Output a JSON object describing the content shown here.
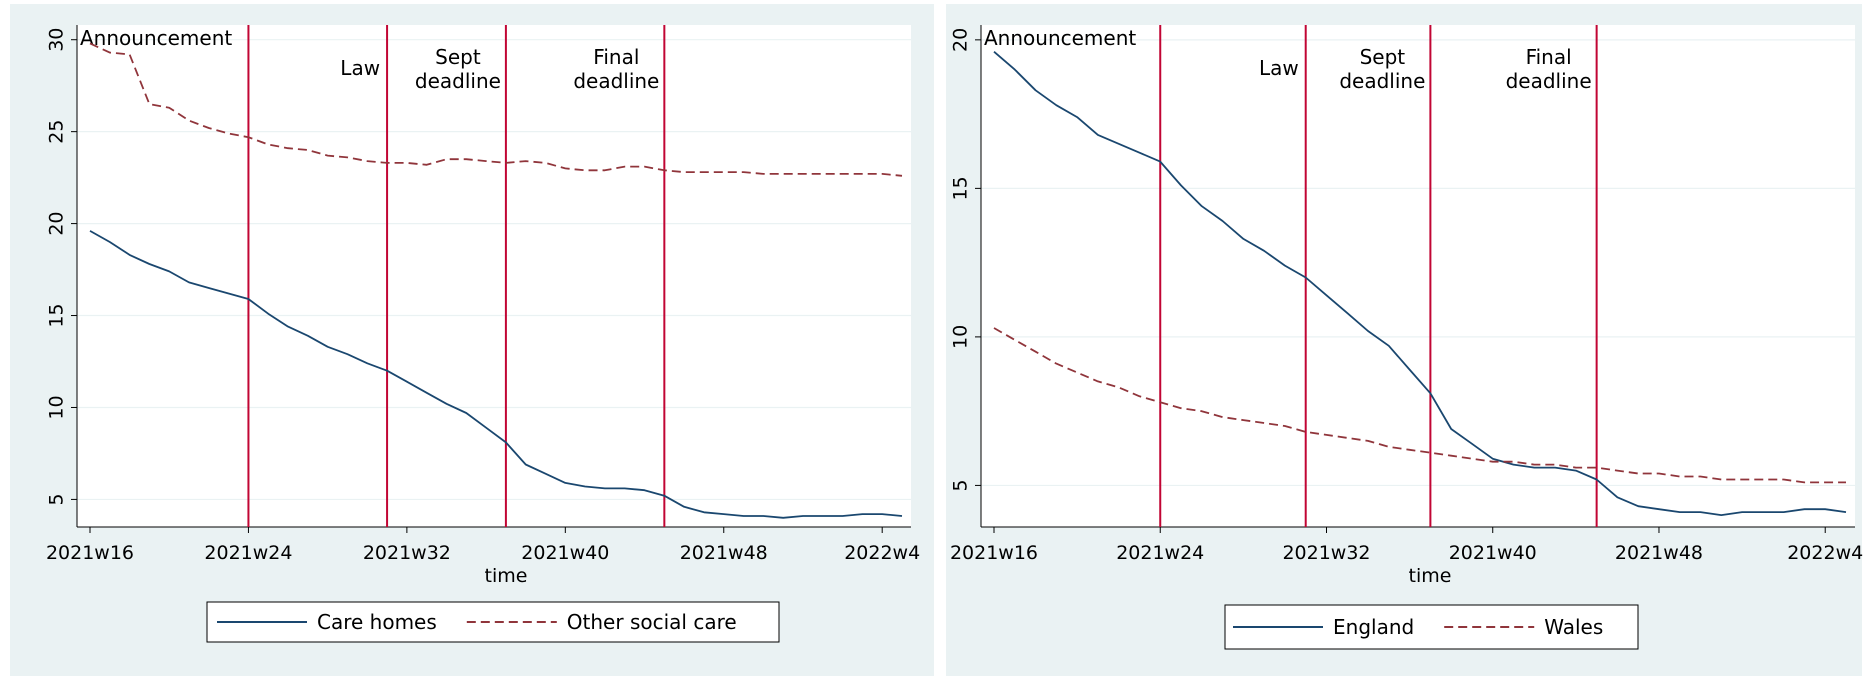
{
  "chart_data": [
    {
      "type": "line",
      "xlabel": "time",
      "x_ticks": [
        "2021w16",
        "2021w24",
        "2021w32",
        "2021w40",
        "2021w48",
        "2022w4"
      ],
      "y_ticks": [
        "5",
        "10",
        "15",
        "20",
        "25",
        "30"
      ],
      "ylim": [
        3.5,
        30.8
      ],
      "legend_position": "bottom",
      "grid": "horizontal",
      "events": [
        {
          "week": 24,
          "label": [
            "Announcement"
          ]
        },
        {
          "week": 31,
          "label": [
            "Law"
          ]
        },
        {
          "week": 37,
          "label": [
            "Sept",
            "deadline"
          ]
        },
        {
          "week": 45,
          "label": [
            "Final",
            "deadline"
          ]
        }
      ],
      "series": [
        {
          "name": "Care homes",
          "style": "solid",
          "color": "#1a476f",
          "x": [
            "2021w16",
            "2021w17",
            "2021w18",
            "2021w19",
            "2021w20",
            "2021w21",
            "2021w22",
            "2021w23",
            "2021w24",
            "2021w25",
            "2021w26",
            "2021w27",
            "2021w28",
            "2021w29",
            "2021w30",
            "2021w31",
            "2021w32",
            "2021w33",
            "2021w34",
            "2021w35",
            "2021w36",
            "2021w37",
            "2021w38",
            "2021w39",
            "2021w40",
            "2021w41",
            "2021w42",
            "2021w43",
            "2021w44",
            "2021w45",
            "2021w46",
            "2021w47",
            "2021w48",
            "2021w49",
            "2021w50",
            "2021w51",
            "2021w52",
            "2022w1",
            "2022w2",
            "2022w3",
            "2022w4",
            "2022w5"
          ],
          "values": [
            19.6,
            19.0,
            18.3,
            17.8,
            17.4,
            16.8,
            16.5,
            16.2,
            15.9,
            15.1,
            14.4,
            13.9,
            13.3,
            12.9,
            12.4,
            12.0,
            11.4,
            10.8,
            10.2,
            9.7,
            8.9,
            8.1,
            6.9,
            6.4,
            5.9,
            5.7,
            5.6,
            5.6,
            5.5,
            5.2,
            4.6,
            4.3,
            4.2,
            4.1,
            4.1,
            4.0,
            4.1,
            4.1,
            4.1,
            4.2,
            4.2,
            4.1
          ]
        },
        {
          "name": "Other social care",
          "style": "dashed",
          "color": "#90353b",
          "x": [
            "2021w16",
            "2021w17",
            "2021w18",
            "2021w19",
            "2021w20",
            "2021w21",
            "2021w22",
            "2021w23",
            "2021w24",
            "2021w25",
            "2021w26",
            "2021w27",
            "2021w28",
            "2021w29",
            "2021w30",
            "2021w31",
            "2021w32",
            "2021w33",
            "2021w34",
            "2021w35",
            "2021w36",
            "2021w37",
            "2021w38",
            "2021w39",
            "2021w40",
            "2021w41",
            "2021w42",
            "2021w43",
            "2021w44",
            "2021w45",
            "2021w46",
            "2021w47",
            "2021w48",
            "2021w49",
            "2021w50",
            "2021w51",
            "2021w52",
            "2022w1",
            "2022w2",
            "2022w3",
            "2022w4",
            "2022w5"
          ],
          "values": [
            29.8,
            29.3,
            29.2,
            26.5,
            26.3,
            25.6,
            25.2,
            24.9,
            24.7,
            24.3,
            24.1,
            24.0,
            23.7,
            23.6,
            23.4,
            23.3,
            23.3,
            23.2,
            23.5,
            23.5,
            23.4,
            23.3,
            23.4,
            23.3,
            23.0,
            22.9,
            22.9,
            23.1,
            23.1,
            22.9,
            22.8,
            22.8,
            22.8,
            22.8,
            22.7,
            22.7,
            22.7,
            22.7,
            22.7,
            22.7,
            22.7,
            22.6
          ]
        }
      ]
    },
    {
      "type": "line",
      "xlabel": "time",
      "x_ticks": [
        "2021w16",
        "2021w24",
        "2021w32",
        "2021w40",
        "2021w48",
        "2022w4"
      ],
      "y_ticks": [
        "5",
        "10",
        "15",
        "20"
      ],
      "ylim": [
        3.6,
        20.5
      ],
      "legend_position": "bottom",
      "grid": "horizontal",
      "events": [
        {
          "week": 24,
          "label": [
            "Announcement"
          ]
        },
        {
          "week": 31,
          "label": [
            "Law"
          ]
        },
        {
          "week": 37,
          "label": [
            "Sept",
            "deadline"
          ]
        },
        {
          "week": 45,
          "label": [
            "Final",
            "deadline"
          ]
        }
      ],
      "series": [
        {
          "name": "England",
          "style": "solid",
          "color": "#1a476f",
          "x": [
            "2021w16",
            "2021w17",
            "2021w18",
            "2021w19",
            "2021w20",
            "2021w21",
            "2021w22",
            "2021w23",
            "2021w24",
            "2021w25",
            "2021w26",
            "2021w27",
            "2021w28",
            "2021w29",
            "2021w30",
            "2021w31",
            "2021w32",
            "2021w33",
            "2021w34",
            "2021w35",
            "2021w36",
            "2021w37",
            "2021w38",
            "2021w39",
            "2021w40",
            "2021w41",
            "2021w42",
            "2021w43",
            "2021w44",
            "2021w45",
            "2021w46",
            "2021w47",
            "2021w48",
            "2021w49",
            "2021w50",
            "2021w51",
            "2021w52",
            "2022w1",
            "2022w2",
            "2022w3",
            "2022w4",
            "2022w5"
          ],
          "values": [
            19.6,
            19.0,
            18.3,
            17.8,
            17.4,
            16.8,
            16.5,
            16.2,
            15.9,
            15.1,
            14.4,
            13.9,
            13.3,
            12.9,
            12.4,
            12.0,
            11.4,
            10.8,
            10.2,
            9.7,
            8.9,
            8.1,
            6.9,
            6.4,
            5.9,
            5.7,
            5.6,
            5.6,
            5.5,
            5.2,
            4.6,
            4.3,
            4.2,
            4.1,
            4.1,
            4.0,
            4.1,
            4.1,
            4.1,
            4.2,
            4.2,
            4.1
          ]
        },
        {
          "name": "Wales",
          "style": "dashed",
          "color": "#90353b",
          "x": [
            "2021w16",
            "2021w17",
            "2021w18",
            "2021w19",
            "2021w20",
            "2021w21",
            "2021w22",
            "2021w23",
            "2021w24",
            "2021w25",
            "2021w26",
            "2021w27",
            "2021w28",
            "2021w29",
            "2021w30",
            "2021w31",
            "2021w32",
            "2021w33",
            "2021w34",
            "2021w35",
            "2021w36",
            "2021w37",
            "2021w38",
            "2021w39",
            "2021w40",
            "2021w41",
            "2021w42",
            "2021w43",
            "2021w44",
            "2021w45",
            "2021w46",
            "2021w47",
            "2021w48",
            "2021w49",
            "2021w50",
            "2021w51",
            "2021w52",
            "2022w1",
            "2022w2",
            "2022w3",
            "2022w4",
            "2022w5"
          ],
          "values": [
            10.3,
            9.9,
            9.5,
            9.1,
            8.8,
            8.5,
            8.3,
            8.0,
            7.8,
            7.6,
            7.5,
            7.3,
            7.2,
            7.1,
            7.0,
            6.8,
            6.7,
            6.6,
            6.5,
            6.3,
            6.2,
            6.1,
            6.0,
            5.9,
            5.8,
            5.8,
            5.7,
            5.7,
            5.6,
            5.6,
            5.5,
            5.4,
            5.4,
            5.3,
            5.3,
            5.2,
            5.2,
            5.2,
            5.2,
            5.1,
            5.1,
            5.1
          ]
        }
      ]
    }
  ],
  "colors": {
    "outer_bg": "#eaf2f3",
    "plot_bg": "#ffffff",
    "event_line": "#c10534",
    "grid": "#eaf2f3"
  }
}
